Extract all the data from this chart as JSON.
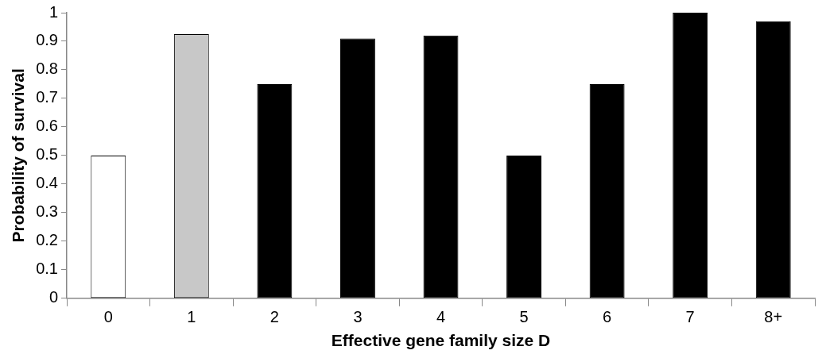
{
  "chart_data": {
    "type": "bar",
    "xlabel": "Effective gene family size D",
    "ylabel": "Probability of survival",
    "categories": [
      "0",
      "1",
      "2",
      "3",
      "4",
      "5",
      "6",
      "7",
      "8+"
    ],
    "values": [
      0.5,
      0.925,
      0.75,
      0.91,
      0.92,
      0.5,
      0.75,
      1.0,
      0.97
    ],
    "colors": [
      "#ffffff",
      "#c8c8c8",
      "#000000",
      "#000000",
      "#000000",
      "#000000",
      "#000000",
      "#000000",
      "#000000"
    ],
    "ylim": [
      0,
      1
    ],
    "yticks": [
      0,
      0.1,
      0.2,
      0.3,
      0.4,
      0.5,
      0.6,
      0.7,
      0.8,
      0.9,
      1
    ],
    "grid": false,
    "legend": false
  }
}
